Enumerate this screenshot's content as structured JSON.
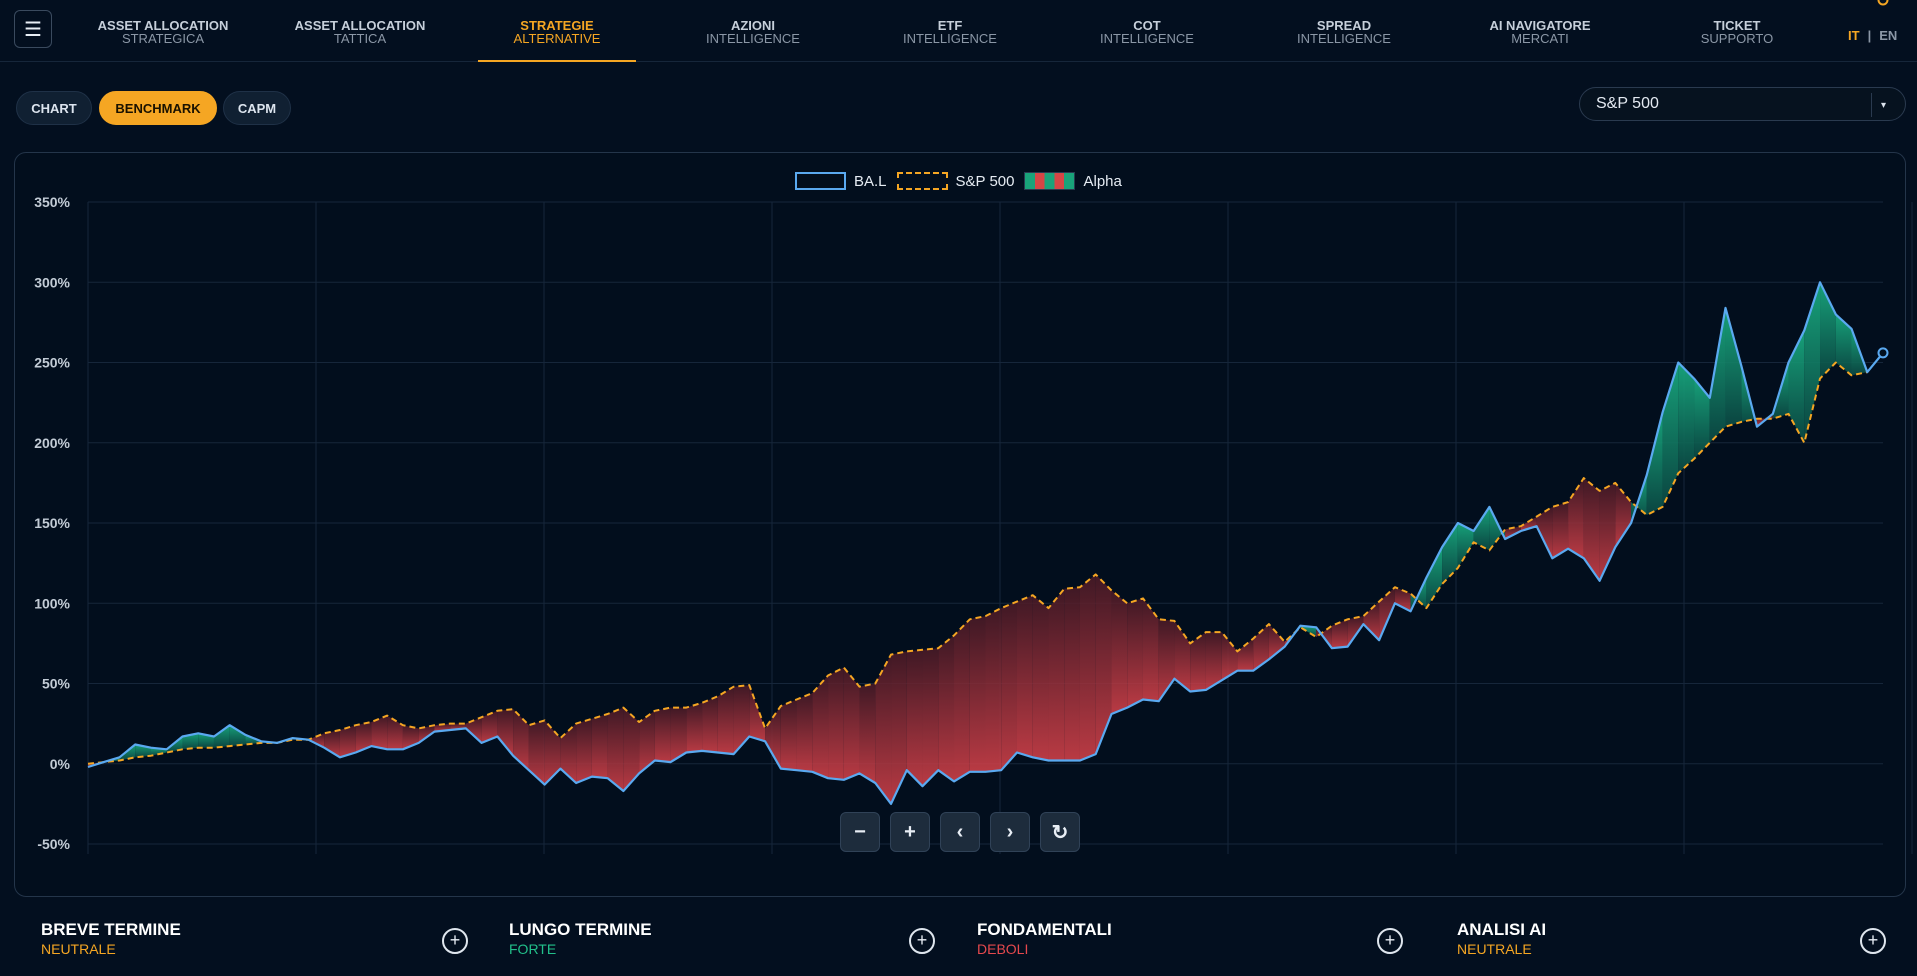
{
  "nav": {
    "menu_icon": "hamburger-icon",
    "items": [
      {
        "l1": "ASSET ALLOCATION",
        "l2": "STRATEGICA"
      },
      {
        "l1": "ASSET ALLOCATION",
        "l2": "TATTICA"
      },
      {
        "l1": "STRATEGIE",
        "l2": "ALTERNATIVE"
      },
      {
        "l1": "AZIONI",
        "l2": "INTELLIGENCE"
      },
      {
        "l1": "ETF",
        "l2": "INTELLIGENCE"
      },
      {
        "l1": "COT",
        "l2": "INTELLIGENCE"
      },
      {
        "l1": "SPREAD",
        "l2": "INTELLIGENCE"
      },
      {
        "l1": "AI NAVIGATORE",
        "l2": "MERCATI"
      },
      {
        "l1": "TICKET",
        "l2": "SUPPORTO"
      }
    ],
    "active_index": 2,
    "lang_it": "IT",
    "lang_sep": "|",
    "lang_en": "EN"
  },
  "views": {
    "chart": "CHART",
    "benchmark": "BENCHMARK",
    "capm": "CAPM",
    "active": "BENCHMARK"
  },
  "benchmark_select": {
    "value": "S&P 500",
    "caret": "▾"
  },
  "legend": {
    "bal": "BA.L",
    "spx": "S&P 500",
    "alpha": "Alpha"
  },
  "controls": {
    "zoom_out": "−",
    "zoom_in": "+",
    "prev": "‹",
    "next": "›",
    "reset": "↻"
  },
  "cards": [
    {
      "title": "BREVE TERMINE",
      "status": "NEUTRALE",
      "color": "#f5a623"
    },
    {
      "title": "LUNGO TERMINE",
      "status": "FORTE",
      "color": "#22c08a"
    },
    {
      "title": "FONDAMENTALI",
      "status": "DEBOLI",
      "color": "#e5484d"
    },
    {
      "title": "ANALISI AI",
      "status": "NEUTRALE",
      "color": "#f5a623"
    }
  ],
  "colors": {
    "accent": "#f5a623",
    "bal_line": "#5aa9f0",
    "spx_line": "#f5a623",
    "alpha_positive": "#17a27a",
    "alpha_negative": "#d9424a"
  },
  "chart_data": {
    "type": "area",
    "ylim": [
      -50,
      350
    ],
    "y_ticks": [
      "350%",
      "300%",
      "250%",
      "200%",
      "150%",
      "100%",
      "50%",
      "0%",
      "-50%"
    ],
    "y_tick_values": [
      350,
      300,
      250,
      200,
      150,
      100,
      50,
      0,
      -50
    ],
    "grid": true,
    "legend_position": "top-center",
    "series": [
      {
        "name": "BA.L",
        "values": [
          -2,
          1,
          4,
          12,
          10,
          9,
          17,
          19,
          17,
          24,
          18,
          14,
          13,
          16,
          15,
          10,
          4,
          7,
          11,
          9,
          9,
          13,
          20,
          21,
          22,
          13,
          17,
          5,
          -4,
          -13,
          -3,
          -12,
          -8,
          -9,
          -17,
          -6,
          2,
          1,
          7,
          8,
          7,
          6,
          17,
          14,
          -3,
          -4,
          -5,
          -9,
          -10,
          -6,
          -12,
          -25,
          -4,
          -14,
          -4,
          -11,
          -5,
          -5,
          -4,
          7,
          4,
          2,
          2,
          2,
          6,
          31,
          35,
          40,
          39,
          53,
          45,
          46,
          52,
          58,
          58,
          65,
          73,
          86,
          85,
          72,
          73,
          87,
          77,
          100,
          95,
          116,
          135,
          150,
          145,
          160,
          140,
          145,
          148,
          128,
          134,
          128,
          114,
          135,
          150,
          180,
          219,
          250,
          240,
          228,
          284,
          248,
          210,
          218,
          250,
          270,
          300,
          280,
          271,
          244,
          256
        ],
        "color": "#5aa9f0"
      },
      {
        "name": "S&P 500",
        "values": [
          0,
          1,
          2,
          4,
          5,
          7,
          9,
          10,
          10,
          11,
          12,
          13,
          13,
          15,
          15,
          19,
          21,
          24,
          26,
          30,
          24,
          22,
          24,
          25,
          25,
          29,
          33,
          34,
          24,
          27,
          16,
          25,
          28,
          31,
          35,
          26,
          33,
          35,
          35,
          38,
          42,
          48,
          49,
          22,
          36,
          40,
          44,
          55,
          60,
          48,
          50,
          68,
          70,
          71,
          72,
          80,
          90,
          92,
          97,
          101,
          105,
          97,
          109,
          110,
          118,
          108,
          100,
          103,
          90,
          89,
          75,
          82,
          82,
          70,
          78,
          87,
          76,
          85,
          79,
          86,
          90,
          92,
          101,
          110,
          106,
          97,
          112,
          122,
          138,
          133,
          146,
          148,
          154,
          160,
          163,
          178,
          170,
          175,
          163,
          155,
          160,
          181,
          190,
          200,
          210,
          213,
          215,
          215,
          218,
          200,
          240,
          250,
          242,
          244
        ],
        "color": "#f5a623"
      }
    ],
    "alpha_series_name": "Alpha"
  }
}
